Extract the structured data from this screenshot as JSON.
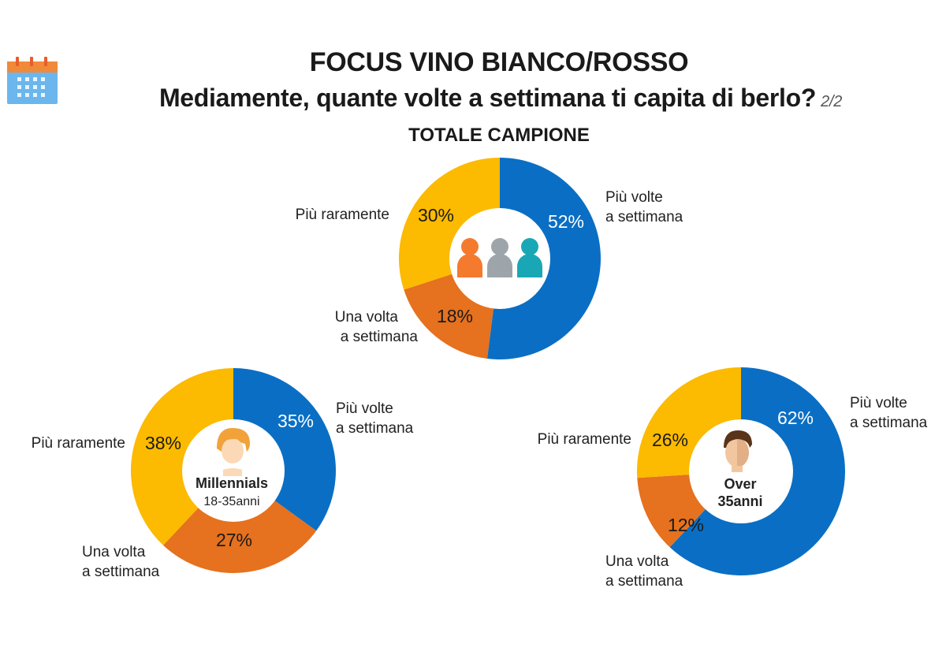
{
  "header": {
    "title": "FOCUS VINO BIANCO/ROSSO",
    "question": "Mediamente, quante volte a settimana ti capita di berlo?",
    "page_indicator": "2/2",
    "subtitle": "TOTALE CAMPIONE"
  },
  "icons": {
    "calendar": "calendar-icon",
    "group": "people-group-icon",
    "millennial": "millennial-avatar-icon",
    "over35": "over35-avatar-icon"
  },
  "colors": {
    "piu_volte": "#0A6FC4",
    "una_volta": "#E6711E",
    "piu_raramente": "#FCBA00",
    "text_on_blue": "#ffffff",
    "text_on_other": "#1a1a1a"
  },
  "chart_data": [
    {
      "type": "pie",
      "donut": true,
      "title": "TOTALE CAMPIONE",
      "categories": [
        "Più volte a settimana",
        "Una volta a settimana",
        "Più raramente"
      ],
      "values": [
        52,
        18,
        30
      ],
      "labels": [
        "52%",
        "18%",
        "30%"
      ],
      "center_text": "",
      "center_subtext": ""
    },
    {
      "type": "pie",
      "donut": true,
      "title": "",
      "categories": [
        "Più volte a settimana",
        "Una volta a settimana",
        "Più raramente"
      ],
      "values": [
        35,
        27,
        38
      ],
      "labels": [
        "35%",
        "27%",
        "38%"
      ],
      "center_text": "Millennials",
      "center_subtext": "18-35anni"
    },
    {
      "type": "pie",
      "donut": true,
      "title": "",
      "categories": [
        "Più volte a settimana",
        "Una volta a settimana",
        "Più raramente"
      ],
      "values": [
        62,
        12,
        26
      ],
      "labels": [
        "62%",
        "12%",
        "26%"
      ],
      "center_text": "Over",
      "center_subtext": "35anni"
    }
  ],
  "charts_labels": [
    {
      "piu_volte": [
        "Più volte",
        "a settimana"
      ],
      "una_volta": [
        "Una volta",
        "a settimana"
      ],
      "piu_raramente": [
        "Più raramente"
      ]
    },
    {
      "piu_volte": [
        "Più volte",
        "a settimana"
      ],
      "una_volta": [
        "Una volta",
        "a settimana"
      ],
      "piu_raramente": [
        "Più raramente"
      ]
    },
    {
      "piu_volte": [
        "Più volte",
        "a settimana"
      ],
      "una_volta": [
        "Una volta",
        "a settimana"
      ],
      "piu_raramente": [
        "Più raramente"
      ]
    }
  ]
}
